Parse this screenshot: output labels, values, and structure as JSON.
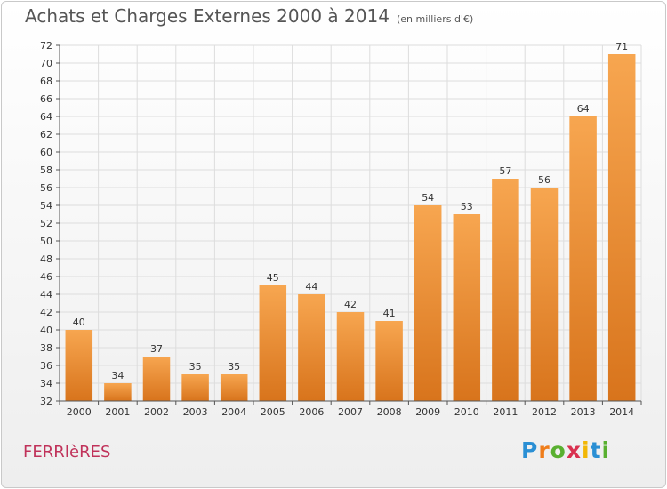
{
  "title": "Achats et Charges Externes 2000 à 2014",
  "subtitle": "(en milliers d'€)",
  "place": "FERRIèRES",
  "brand": {
    "letters": [
      "P",
      "r",
      "o",
      "x",
      "i",
      "t",
      "i"
    ],
    "colors": [
      "#2a8fd4",
      "#ef7d1a",
      "#59b030",
      "#d9304f",
      "#f2b705",
      "#2a8fd4",
      "#59b030"
    ]
  },
  "chart_data": {
    "type": "bar",
    "categories": [
      "2000",
      "2001",
      "2002",
      "2003",
      "2004",
      "2005",
      "2006",
      "2007",
      "2008",
      "2009",
      "2010",
      "2011",
      "2012",
      "2013",
      "2014"
    ],
    "values": [
      40,
      34,
      37,
      35,
      35,
      45,
      44,
      42,
      41,
      54,
      53,
      57,
      56,
      64,
      71
    ],
    "ylim": [
      32,
      72
    ],
    "yticks": [
      32,
      34,
      36,
      38,
      40,
      42,
      44,
      46,
      48,
      50,
      52,
      54,
      56,
      58,
      60,
      62,
      64,
      66,
      68,
      70,
      72
    ],
    "grid": true,
    "bar_color_top": "#f7a650",
    "bar_color_bottom": "#d8741c"
  }
}
